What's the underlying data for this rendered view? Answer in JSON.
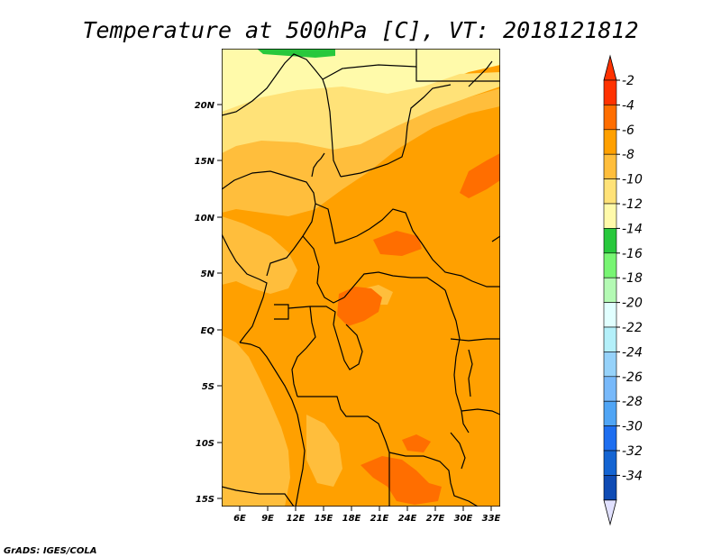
{
  "title": "Temperature at 500hPa [C], VT: 2018121812",
  "credit": "GrADS: IGES/COLA",
  "map": {
    "x_ticks": [
      "6E",
      "9E",
      "12E",
      "15E",
      "18E",
      "21E",
      "24E",
      "27E",
      "30E",
      "33E"
    ],
    "y_ticks": [
      "20N",
      "15N",
      "10N",
      "5N",
      "EQ",
      "5S",
      "10S",
      "15S"
    ],
    "land_fill": "#ffa000",
    "border_color": "#000000"
  },
  "colorbar": {
    "labels": [
      "-2",
      "-4",
      "-6",
      "-8",
      "-10",
      "-12",
      "-14",
      "-16",
      "-18",
      "-20",
      "-22",
      "-24",
      "-26",
      "-28",
      "-30",
      "-32",
      "-34"
    ],
    "colors": [
      "#ff3200",
      "#ff6e00",
      "#ffa000",
      "#ffbe3c",
      "#ffe278",
      "#fffaaa",
      "#28c83c",
      "#78f573",
      "#b4fab4",
      "#e1ffff",
      "#b4f0fa",
      "#96d2fa",
      "#78b9fa",
      "#50a5f5",
      "#1e6ef0",
      "#1464d2",
      "#0f4bb4"
    ],
    "top_arrow_color": "#ff3200",
    "bottom_arrow_color": "#e1e1ff"
  }
}
